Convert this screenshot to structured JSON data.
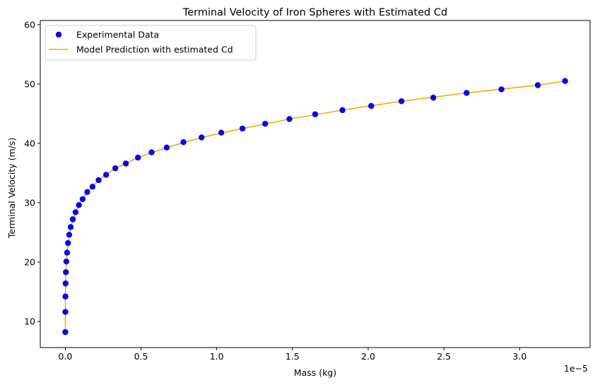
{
  "chart_data": {
    "type": "scatter",
    "title": "Terminal Velocity of Iron Spheres with Estimated Cd",
    "xlabel": "Mass (kg)",
    "ylabel": "Terminal Velocity (m/s)",
    "x_offset_text": "1e−5",
    "xlim": [
      -0.165,
      3.465
    ],
    "ylim": [
      5.6,
      60.7
    ],
    "x_ticks": [
      0.0,
      0.5,
      1.0,
      1.5,
      2.0,
      2.5,
      3.0
    ],
    "x_tick_labels": [
      "0.0",
      "0.5",
      "1.0",
      "1.5",
      "2.0",
      "2.5",
      "3.0"
    ],
    "y_ticks": [
      10,
      20,
      30,
      40,
      50,
      60
    ],
    "y_tick_labels": [
      "10",
      "20",
      "30",
      "40",
      "50",
      "60"
    ],
    "grid": false,
    "legend_position": "top-left",
    "series": [
      {
        "name": "Experimental Data",
        "kind": "scatter",
        "color": "#0000ff",
        "x": [
          0.0004,
          0.0005,
          0.001,
          0.002,
          0.004,
          0.007,
          0.012,
          0.018,
          0.026,
          0.036,
          0.05,
          0.068,
          0.09,
          0.115,
          0.145,
          0.18,
          0.22,
          0.27,
          0.33,
          0.4,
          0.48,
          0.57,
          0.67,
          0.78,
          0.9,
          1.03,
          1.17,
          1.32,
          1.48,
          1.65,
          1.83,
          2.02,
          2.22,
          2.43,
          2.65,
          2.88,
          3.12,
          3.3
        ],
        "y": [
          8.2,
          11.6,
          14.2,
          16.4,
          18.3,
          20.1,
          21.6,
          23.2,
          24.6,
          25.9,
          27.2,
          28.4,
          29.6,
          30.6,
          31.8,
          32.7,
          33.8,
          34.7,
          35.8,
          36.6,
          37.6,
          38.5,
          39.3,
          40.2,
          41.0,
          41.8,
          42.5,
          43.3,
          44.1,
          44.9,
          45.6,
          46.3,
          47.1,
          47.7,
          48.5,
          49.1,
          49.8,
          50.5
        ]
      },
      {
        "name": "Model Prediction with estimated Cd",
        "kind": "line",
        "color": "#ffa500",
        "x": [
          0.0004,
          0.001,
          0.004,
          0.012,
          0.026,
          0.05,
          0.09,
          0.145,
          0.22,
          0.33,
          0.48,
          0.67,
          0.9,
          1.17,
          1.48,
          1.83,
          2.22,
          2.65,
          3.12,
          3.3
        ],
        "y": [
          8.2,
          14.2,
          18.3,
          21.6,
          24.6,
          27.2,
          29.6,
          31.8,
          33.8,
          35.8,
          37.6,
          39.3,
          41.0,
          42.5,
          44.1,
          45.6,
          47.1,
          48.5,
          49.8,
          50.5
        ]
      }
    ]
  }
}
